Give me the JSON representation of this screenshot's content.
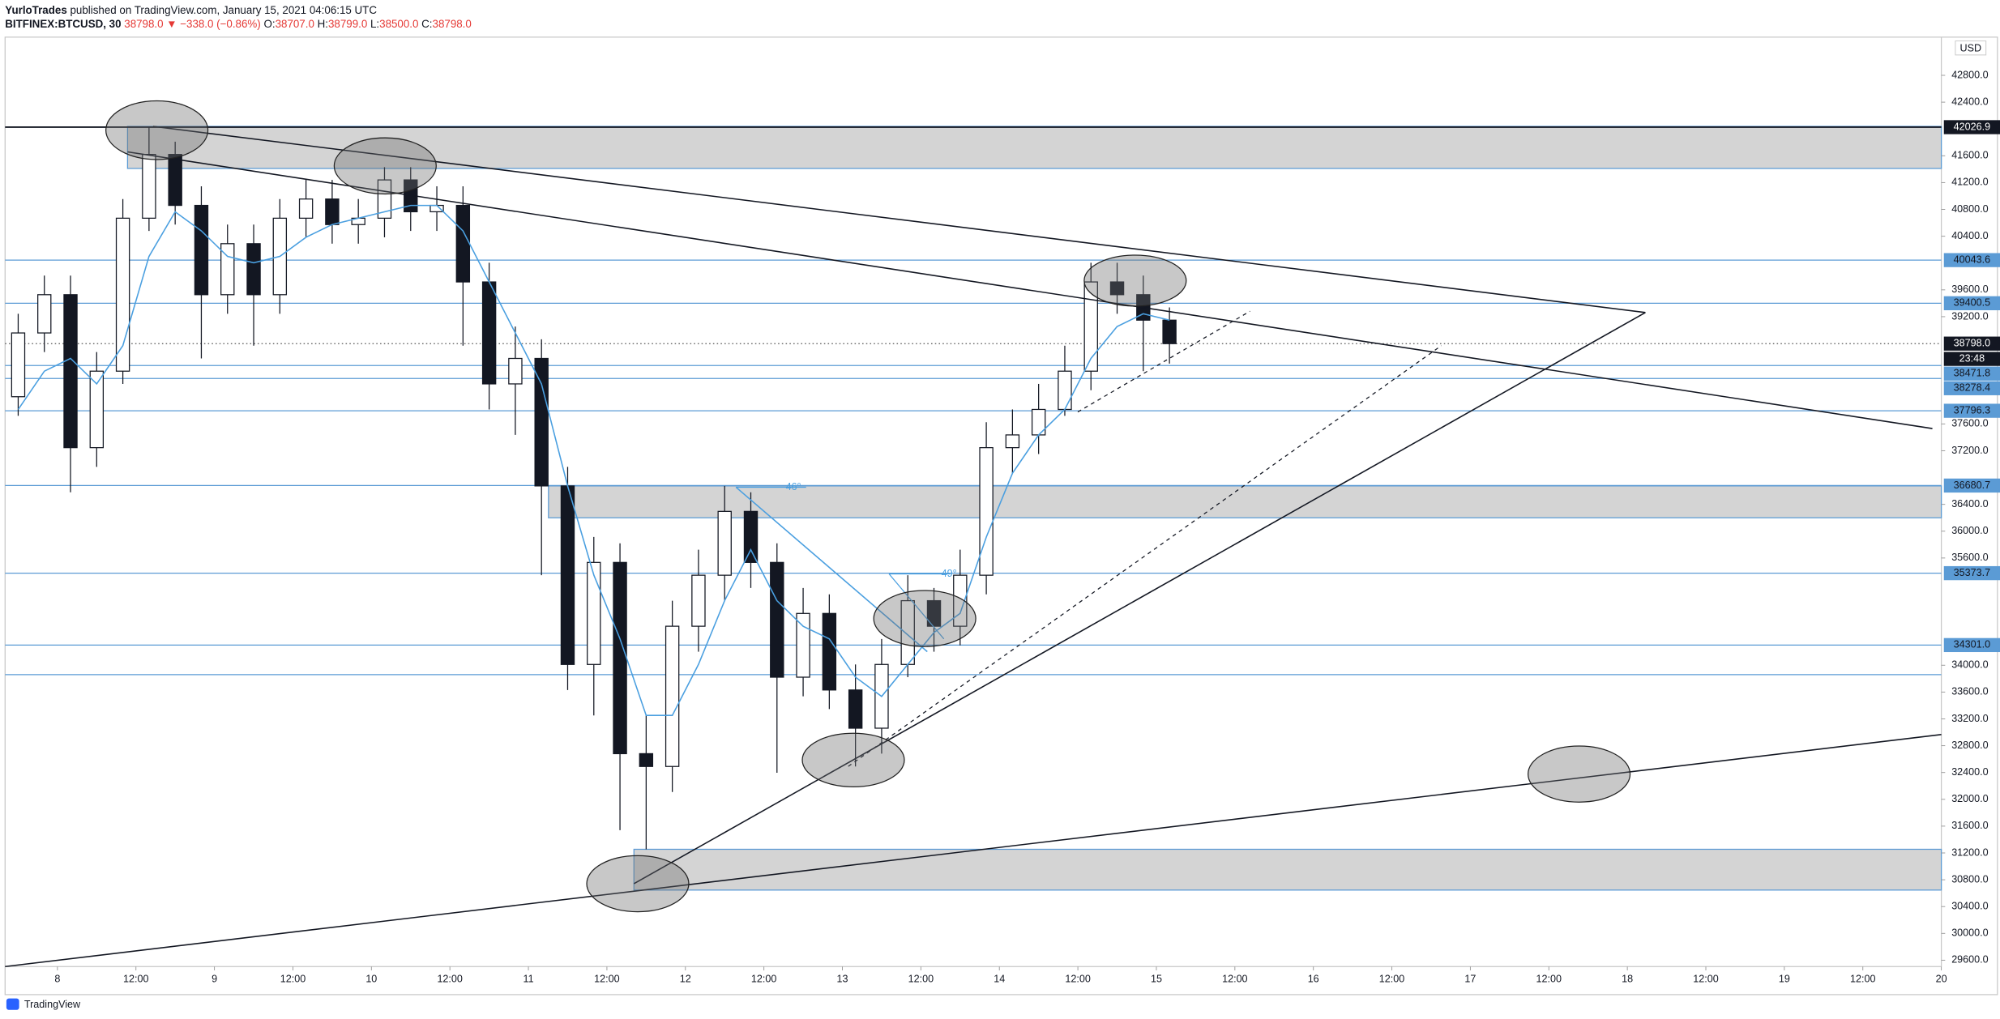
{
  "header": {
    "author": "YurloTrades",
    "published": "published on TradingView.com, January 15, 2021 04:06:15 UTC",
    "symbol": "BITFINEX:BTCUSD, 30",
    "last": "38798.0",
    "change": "▼ −338.0 (−0.86%)",
    "open_label": "O:",
    "open": "38707.0",
    "high_label": "H:",
    "high": "38799.0",
    "low_label": "L:",
    "low": "38500.0",
    "close_label": "C:",
    "close": "38798.0"
  },
  "footer": "TradingView",
  "chart_data": {
    "type": "candlestick",
    "currency": "USD",
    "x": [
      -6,
      -2,
      2,
      6,
      10,
      14,
      18,
      22,
      26,
      30,
      34,
      38,
      42,
      46,
      50,
      54,
      58,
      62,
      66,
      70,
      74,
      78,
      82,
      86,
      90,
      94,
      98,
      102,
      106,
      110,
      114,
      118,
      122,
      126,
      130,
      134,
      138,
      142,
      146,
      150,
      154,
      158,
      162,
      166,
      170
    ],
    "open": [
      38006,
      38957,
      39528,
      37246,
      38387,
      40669,
      41620,
      40860,
      39528,
      40289,
      39528,
      40669,
      40955,
      40574,
      40669,
      41240,
      40765,
      40860,
      39718,
      38197,
      38577,
      36675,
      34012,
      35534,
      32681,
      32490,
      34582,
      35343,
      36295,
      35534,
      33822,
      34773,
      33631,
      33061,
      34012,
      34963,
      34582,
      35343,
      37246,
      37436,
      37816,
      38387,
      39718,
      39528,
      39148
    ],
    "high": [
      39243,
      39813,
      39813,
      38672,
      40955,
      42030,
      41810,
      41145,
      40574,
      40574,
      40955,
      41240,
      41240,
      40955,
      41430,
      41430,
      41145,
      41145,
      40004,
      39053,
      38862,
      36960,
      35914,
      35819,
      33251,
      34963,
      35724,
      36675,
      36580,
      35819,
      35153,
      35058,
      34012,
      34392,
      35343,
      35153,
      35724,
      37626,
      37816,
      38197,
      38767,
      40004,
      40004,
      39813,
      39338
    ],
    "low": [
      37721,
      38672,
      36580,
      36960,
      38197,
      40479,
      40574,
      38577,
      39243,
      38767,
      39243,
      40384,
      40289,
      40289,
      40384,
      40479,
      40479,
      38767,
      37816,
      37436,
      35343,
      33631,
      33251,
      31540,
      31255,
      32110,
      34202,
      34963,
      35153,
      32396,
      33536,
      33346,
      32490,
      32681,
      33822,
      34202,
      34297,
      35058,
      36865,
      37151,
      37721,
      38102,
      39243,
      38387,
      38500
    ],
    "close": [
      38957,
      39528,
      37246,
      38387,
      40669,
      41620,
      40860,
      39528,
      40289,
      39528,
      40669,
      40955,
      40574,
      40669,
      41240,
      40765,
      40860,
      39718,
      38197,
      38577,
      36675,
      34012,
      35534,
      32681,
      32490,
      34582,
      35343,
      36295,
      35534,
      33822,
      34773,
      33631,
      33061,
      34012,
      34963,
      34582,
      35343,
      37246,
      37436,
      37816,
      38387,
      39718,
      39528,
      39148,
      38798
    ],
    "up_color": "#ffffff",
    "down_color": "#131722",
    "ma": {
      "color": "#4a9fe0",
      "values": [
        37816,
        38387,
        38577,
        38197,
        38767,
        40099,
        40765,
        40479,
        40099,
        40004,
        40099,
        40384,
        40574,
        40669,
        40765,
        40860,
        40860,
        40479,
        39718,
        38957,
        38197,
        36675,
        35343,
        34392,
        33251,
        33251,
        34012,
        34963,
        35724,
        34963,
        34582,
        34392,
        33822,
        33536,
        34012,
        34488,
        34773,
        35914,
        36865,
        37436,
        37816,
        38577,
        39053,
        39243,
        39148
      ]
    },
    "xlim": [
      -8,
      288
    ],
    "xticks": [
      {
        "value": 0,
        "label": "8"
      },
      {
        "value": 12,
        "label": "12:00"
      },
      {
        "value": 24,
        "label": "9"
      },
      {
        "value": 36,
        "label": "12:00"
      },
      {
        "value": 48,
        "label": "10"
      },
      {
        "value": 60,
        "label": "12:00"
      },
      {
        "value": 72,
        "label": "11"
      },
      {
        "value": 84,
        "label": "12:00"
      },
      {
        "value": 96,
        "label": "12"
      },
      {
        "value": 108,
        "label": "12:00"
      },
      {
        "value": 120,
        "label": "13"
      },
      {
        "value": 132,
        "label": "12:00"
      },
      {
        "value": 144,
        "label": "14"
      },
      {
        "value": 156,
        "label": "12:00"
      },
      {
        "value": 168,
        "label": "15"
      },
      {
        "value": 180,
        "label": "12:00"
      },
      {
        "value": 192,
        "label": "16"
      },
      {
        "value": 204,
        "label": "12:00"
      },
      {
        "value": 216,
        "label": "17"
      },
      {
        "value": 228,
        "label": "12:00"
      },
      {
        "value": 240,
        "label": "18"
      },
      {
        "value": 252,
        "label": "12:00"
      },
      {
        "value": 264,
        "label": "19"
      },
      {
        "value": 276,
        "label": "12:00"
      },
      {
        "value": 288,
        "label": "20"
      }
    ],
    "ylim": [
      29505,
      43370
    ],
    "yticks": [
      {
        "value": 42800,
        "label": "42800.0"
      },
      {
        "value": 42400,
        "label": "42400.0"
      },
      {
        "value": 41600,
        "label": "41600.0"
      },
      {
        "value": 41200,
        "label": "41200.0"
      },
      {
        "value": 40800,
        "label": "40800.0"
      },
      {
        "value": 40400,
        "label": "40400.0"
      },
      {
        "value": 39600,
        "label": "39600.0"
      },
      {
        "value": 39200,
        "label": "39200.0"
      },
      {
        "value": 37600,
        "label": "37600.0"
      },
      {
        "value": 37200,
        "label": "37200.0"
      },
      {
        "value": 36400,
        "label": "36400.0"
      },
      {
        "value": 36000,
        "label": "36000.0"
      },
      {
        "value": 35600,
        "label": "35600.0"
      },
      {
        "value": 34000,
        "label": "34000.0"
      },
      {
        "value": 33600,
        "label": "33600.0"
      },
      {
        "value": 33200,
        "label": "33200.0"
      },
      {
        "value": 32800,
        "label": "32800.0"
      },
      {
        "value": 32400,
        "label": "32400.0"
      },
      {
        "value": 32000,
        "label": "32000.0"
      },
      {
        "value": 31600,
        "label": "31600.0"
      },
      {
        "value": 31200,
        "label": "31200.0"
      },
      {
        "value": 30800,
        "label": "30800.0"
      },
      {
        "value": 30400,
        "label": "30400.0"
      },
      {
        "value": 30000,
        "label": "30000.0"
      },
      {
        "value": 29600,
        "label": "29600.0"
      }
    ],
    "grid": false,
    "levels": {
      "values": [
        42026.9,
        40043.6,
        39400.5,
        38798,
        38471.8,
        38278.4,
        37796.3,
        36680.7,
        35373.7,
        34301
      ],
      "value_labels": [
        "42026.9",
        "40043.6",
        "39400.5",
        "38798.0",
        "38471.8",
        "38278.4",
        "37796.3",
        "36680.7",
        "35373.7",
        "34301.0"
      ],
      "colors": [
        "#131722",
        "#5b9bd5",
        "#5b9bd5",
        "#131722",
        "#5b9bd5",
        "#5b9bd5",
        "#5b9bd5",
        "#5b9bd5",
        "#5b9bd5",
        "#5b9bd5"
      ]
    },
    "countdown": "23:48",
    "annotations": [
      "46°",
      "49°"
    ]
  }
}
